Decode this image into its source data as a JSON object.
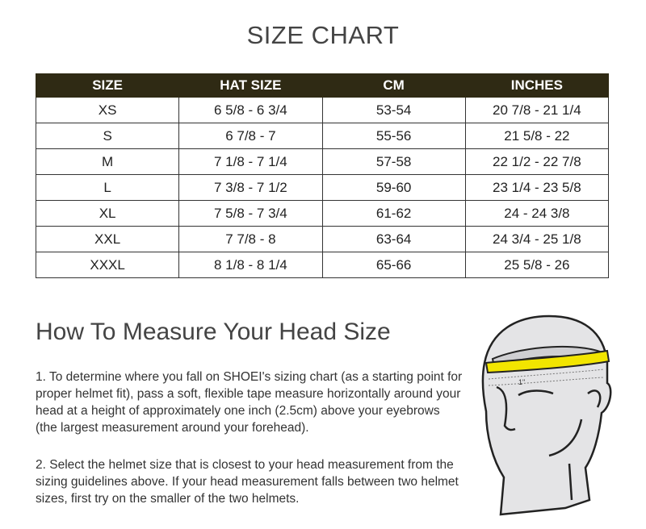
{
  "title": "SIZE CHART",
  "table": {
    "headers": [
      "SIZE",
      "HAT SIZE",
      "CM",
      "INCHES"
    ],
    "rows": [
      [
        "XS",
        "6 5/8 - 6 3/4",
        "53-54",
        "20 7/8 - 21 1/4"
      ],
      [
        "S",
        "6 7/8 - 7",
        "55-56",
        "21 5/8 - 22"
      ],
      [
        "M",
        "7 1/8 - 7 1/4",
        "57-58",
        "22 1/2 - 22 7/8"
      ],
      [
        "L",
        "7 3/8 - 7 1/2",
        "59-60",
        "23 1/4 - 23 5/8"
      ],
      [
        "XL",
        "7 5/8 - 7 3/4",
        "61-62",
        "24 - 24 3/8"
      ],
      [
        "XXL",
        "7 7/8 - 8",
        "63-64",
        "24 3/4 - 25 1/8"
      ],
      [
        "XXXL",
        "8 1/8 - 8 1/4",
        "65-66",
        "25 5/8 - 26"
      ]
    ]
  },
  "measure": {
    "heading": "How To Measure Your Head Size",
    "step1": "1. To determine where you fall on SHOEI's sizing chart (as a starting point for proper helmet fit), pass a soft, flexible tape measure horizontally around your head at a height of approximately one inch (2.5cm) above your eyebrows (the largest measurement around your forehead).",
    "step2": "2. Select the helmet size that is closest to your head measurement from the sizing guidelines above. If your head measurement falls between two helmet sizes, first try on the smaller of the two helmets.",
    "illustration_label": "1\"",
    "tape_color": "#f2e500"
  }
}
